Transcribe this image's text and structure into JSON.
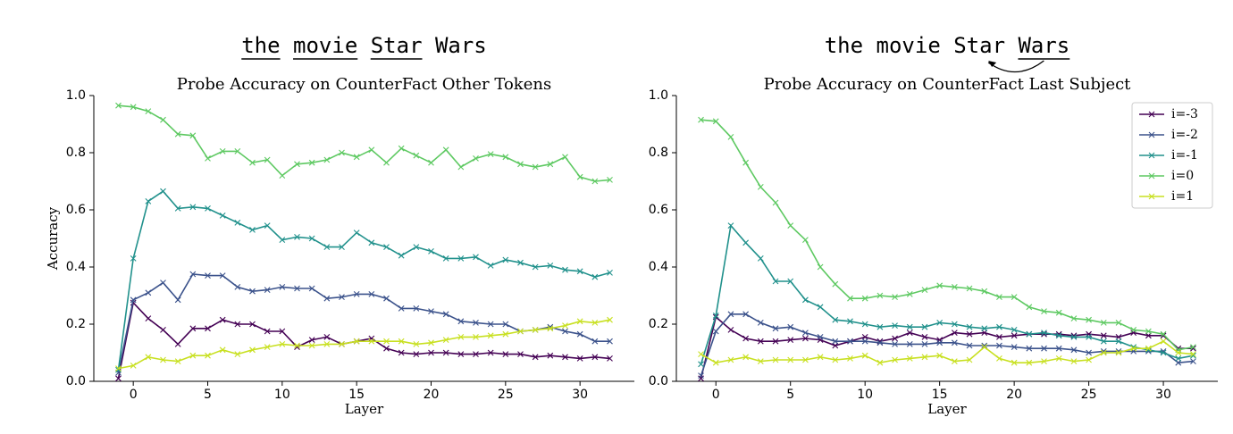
{
  "chart_data": [
    {
      "type": "line",
      "header": [
        "the",
        "movie",
        "Star",
        "Wars"
      ],
      "underlined": [
        0,
        1,
        2
      ],
      "title": "Probe Accuracy on CounterFact Other Tokens",
      "xlabel": "Layer",
      "ylabel": "Accuracy",
      "marker": "x",
      "x": [
        -1,
        0,
        1,
        2,
        3,
        4,
        5,
        6,
        7,
        8,
        9,
        10,
        11,
        12,
        13,
        14,
        15,
        16,
        17,
        18,
        19,
        20,
        21,
        22,
        23,
        24,
        25,
        26,
        27,
        28,
        29,
        30,
        31,
        32
      ],
      "xlim": [
        -2.65,
        33.65
      ],
      "ylim": [
        0,
        1
      ],
      "xticks": [
        0,
        5,
        10,
        15,
        20,
        25,
        30
      ],
      "yticks": [
        {
          "value": 0,
          "label": "0.0"
        },
        0.2,
        0.4,
        0.6,
        0.8,
        {
          "value": 1,
          "label": "1.0"
        }
      ],
      "series": [
        {
          "color": "#440154",
          "values": [
            0.01,
            0.275,
            0.22,
            0.18,
            0.13,
            0.185,
            0.185,
            0.215,
            0.2,
            0.2,
            0.175,
            0.175,
            0.12,
            0.145,
            0.155,
            0.13,
            0.14,
            0.15,
            0.115,
            0.1,
            0.095,
            0.1,
            0.1,
            0.095,
            0.095,
            0.1,
            0.095,
            0.095,
            0.085,
            0.09,
            0.085,
            0.08,
            0.085,
            0.08
          ]
        },
        {
          "color": "#3b528b",
          "values": [
            0.03,
            0.285,
            0.31,
            0.345,
            0.285,
            0.375,
            0.37,
            0.37,
            0.33,
            0.315,
            0.32,
            0.33,
            0.325,
            0.325,
            0.29,
            0.295,
            0.305,
            0.305,
            0.29,
            0.255,
            0.255,
            0.245,
            0.235,
            0.21,
            0.205,
            0.2,
            0.2,
            0.175,
            0.18,
            0.19,
            0.175,
            0.165,
            0.14,
            0.14
          ]
        },
        {
          "color": "#21918c",
          "values": [
            0.04,
            0.43,
            0.63,
            0.665,
            0.605,
            0.61,
            0.605,
            0.58,
            0.555,
            0.53,
            0.545,
            0.495,
            0.505,
            0.5,
            0.47,
            0.47,
            0.52,
            0.485,
            0.47,
            0.44,
            0.47,
            0.455,
            0.43,
            0.43,
            0.435,
            0.405,
            0.425,
            0.415,
            0.4,
            0.405,
            0.39,
            0.385,
            0.365,
            0.38
          ]
        },
        {
          "color": "#5ec962",
          "values": [
            0.965,
            0.96,
            0.945,
            0.915,
            0.865,
            0.86,
            0.78,
            0.805,
            0.805,
            0.765,
            0.775,
            0.72,
            0.76,
            0.765,
            0.775,
            0.8,
            0.785,
            0.81,
            0.765,
            0.815,
            0.79,
            0.765,
            0.81,
            0.75,
            0.78,
            0.795,
            0.785,
            0.76,
            0.75,
            0.76,
            0.785,
            0.715,
            0.7,
            0.705
          ]
        },
        {
          "color": "#c8e020",
          "values": [
            0.045,
            0.055,
            0.085,
            0.075,
            0.07,
            0.09,
            0.09,
            0.11,
            0.095,
            0.11,
            0.12,
            0.13,
            0.125,
            0.125,
            0.13,
            0.13,
            0.14,
            0.14,
            0.14,
            0.14,
            0.13,
            0.135,
            0.145,
            0.155,
            0.155,
            0.16,
            0.165,
            0.175,
            0.18,
            0.185,
            0.195,
            0.21,
            0.205,
            0.215
          ]
        }
      ]
    },
    {
      "type": "line",
      "header": [
        "the",
        "movie",
        "Star",
        "Wars"
      ],
      "underlined": [
        3
      ],
      "arrow": [
        3,
        2
      ],
      "title": "Probe Accuracy on CounterFact Last Subject",
      "xlabel": "Layer",
      "marker": "x",
      "legend": "upper right",
      "x": [
        -1,
        0,
        1,
        2,
        3,
        4,
        5,
        6,
        7,
        8,
        9,
        10,
        11,
        12,
        13,
        14,
        15,
        16,
        17,
        18,
        19,
        20,
        21,
        22,
        23,
        24,
        25,
        26,
        27,
        28,
        29,
        30,
        31,
        32
      ],
      "xlim": [
        -2.65,
        33.65
      ],
      "ylim": [
        0,
        1
      ],
      "xticks": [
        0,
        5,
        10,
        15,
        20,
        25,
        30
      ],
      "yticks": [
        {
          "value": 0,
          "label": "0.0"
        },
        0.2,
        0.4,
        0.6,
        0.8,
        {
          "value": 1,
          "label": "1.0"
        }
      ],
      "series": [
        {
          "name": "i=-3",
          "color": "#440154",
          "values": [
            0.01,
            0.225,
            0.18,
            0.15,
            0.14,
            0.14,
            0.145,
            0.15,
            0.145,
            0.125,
            0.14,
            0.155,
            0.14,
            0.15,
            0.17,
            0.155,
            0.145,
            0.17,
            0.165,
            0.17,
            0.155,
            0.16,
            0.165,
            0.165,
            0.165,
            0.16,
            0.165,
            0.16,
            0.155,
            0.17,
            0.16,
            0.16,
            0.115,
            0.115
          ]
        },
        {
          "name": "i=-2",
          "color": "#3b528b",
          "values": [
            0.02,
            0.175,
            0.235,
            0.235,
            0.205,
            0.185,
            0.19,
            0.17,
            0.155,
            0.14,
            0.14,
            0.14,
            0.135,
            0.13,
            0.13,
            0.13,
            0.135,
            0.135,
            0.125,
            0.125,
            0.125,
            0.12,
            0.115,
            0.115,
            0.115,
            0.11,
            0.1,
            0.105,
            0.105,
            0.105,
            0.105,
            0.105,
            0.065,
            0.07
          ]
        },
        {
          "name": "i=-1",
          "color": "#21918c",
          "values": [
            0.06,
            0.23,
            0.545,
            0.485,
            0.43,
            0.35,
            0.35,
            0.285,
            0.26,
            0.215,
            0.21,
            0.2,
            0.19,
            0.195,
            0.19,
            0.19,
            0.205,
            0.2,
            0.19,
            0.185,
            0.19,
            0.18,
            0.165,
            0.17,
            0.16,
            0.155,
            0.155,
            0.14,
            0.14,
            0.12,
            0.11,
            0.1,
            0.08,
            0.09
          ]
        },
        {
          "name": "i=0",
          "color": "#5ec962",
          "values": [
            0.915,
            0.91,
            0.855,
            0.765,
            0.68,
            0.625,
            0.545,
            0.495,
            0.4,
            0.34,
            0.29,
            0.29,
            0.3,
            0.295,
            0.305,
            0.32,
            0.335,
            0.33,
            0.325,
            0.315,
            0.295,
            0.295,
            0.26,
            0.245,
            0.24,
            0.22,
            0.215,
            0.205,
            0.205,
            0.18,
            0.175,
            0.165,
            0.11,
            0.12
          ]
        },
        {
          "name": "i=1",
          "color": "#c8e020",
          "values": [
            0.095,
            0.065,
            0.075,
            0.085,
            0.07,
            0.075,
            0.075,
            0.075,
            0.085,
            0.075,
            0.08,
            0.09,
            0.065,
            0.075,
            0.08,
            0.085,
            0.09,
            0.07,
            0.075,
            0.12,
            0.08,
            0.065,
            0.065,
            0.07,
            0.08,
            0.07,
            0.075,
            0.1,
            0.1,
            0.115,
            0.115,
            0.14,
            0.1,
            0.095
          ]
        }
      ]
    }
  ]
}
